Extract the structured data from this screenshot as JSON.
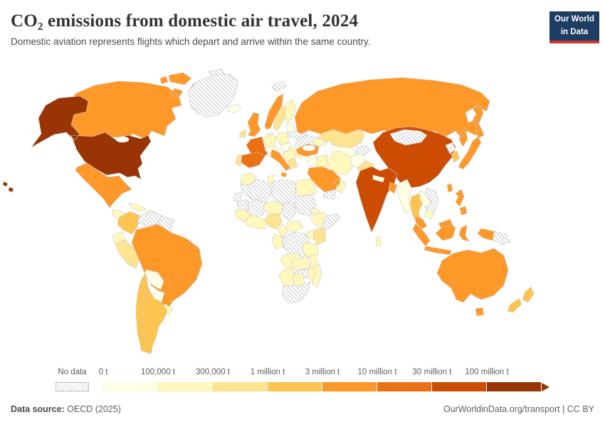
{
  "header": {
    "title": "CO₂ emissions from domestic air travel, 2024",
    "subtitle": "Domestic aviation represents flights which depart and arrive within the same country.",
    "logo": {
      "line1": "Our World",
      "line2": "in Data",
      "bg": "#1d3d63",
      "accent": "#c7392f"
    }
  },
  "footer": {
    "source_label": "Data source:",
    "source": "OECD (2025)",
    "right": "OurWorldinData.org/transport | CC BY"
  },
  "chart_data": {
    "type": "choropleth-map",
    "title": "CO₂ emissions from domestic air travel, 2024",
    "unit": "tonnes CO₂",
    "legend": {
      "position": "bottom",
      "no_data_label": "No data",
      "bucket_labels": [
        "0 t",
        "100,000 t",
        "300,000 t",
        "1 million t",
        "3 million t",
        "10 million t",
        "30 million t",
        "100 million t"
      ],
      "bucket_colors": [
        "#ffffe5",
        "#fff7bc",
        "#fee391",
        "#fec44f",
        "#fe9929",
        "#ec7014",
        "#cc4c02",
        "#993404"
      ]
    },
    "regions": [
      {
        "id": "united-states",
        "name": "United States",
        "bucket": 7
      },
      {
        "id": "canada",
        "name": "Canada",
        "bucket": 4
      },
      {
        "id": "arctic-islands",
        "name": "Arctic islands",
        "bucket": -1
      },
      {
        "id": "greenland",
        "name": "Greenland",
        "bucket": -1
      },
      {
        "id": "mexico",
        "name": "Mexico",
        "bucket": 4
      },
      {
        "id": "central-america",
        "name": "Central America",
        "bucket": 1
      },
      {
        "id": "cuba",
        "name": "Cuba",
        "bucket": 1
      },
      {
        "id": "hispaniola",
        "name": "Hispaniola",
        "bucket": 1
      },
      {
        "id": "colombia",
        "name": "Colombia",
        "bucket": 3
      },
      {
        "id": "venezuela",
        "name": "Venezuela",
        "bucket": -1
      },
      {
        "id": "guyana-suriname",
        "name": "Guyana and Suriname",
        "bucket": -1
      },
      {
        "id": "ecuador",
        "name": "Ecuador",
        "bucket": 1
      },
      {
        "id": "peru",
        "name": "Peru",
        "bucket": 2
      },
      {
        "id": "bolivia",
        "name": "Bolivia",
        "bucket": 0
      },
      {
        "id": "brazil",
        "name": "Brazil",
        "bucket": 4
      },
      {
        "id": "paraguay",
        "name": "Paraguay",
        "bucket": 0
      },
      {
        "id": "uruguay",
        "name": "Uruguay",
        "bucket": 1
      },
      {
        "id": "chile",
        "name": "Chile",
        "bucket": 3
      },
      {
        "id": "argentina",
        "name": "Argentina",
        "bucket": 3
      },
      {
        "id": "iceland",
        "name": "Iceland",
        "bucket": 0
      },
      {
        "id": "united-kingdom",
        "name": "United Kingdom",
        "bucket": 4
      },
      {
        "id": "ireland",
        "name": "Ireland",
        "bucket": 2
      },
      {
        "id": "norway",
        "name": "Norway",
        "bucket": 4
      },
      {
        "id": "svalbard",
        "name": "Svalbard",
        "bucket": -1
      },
      {
        "id": "sweden",
        "name": "Sweden",
        "bucket": 2
      },
      {
        "id": "finland",
        "name": "Finland",
        "bucket": 1
      },
      {
        "id": "denmark",
        "name": "Denmark",
        "bucket": 1
      },
      {
        "id": "baltics",
        "name": "Baltic states",
        "bucket": 0
      },
      {
        "id": "belarus",
        "name": "Belarus",
        "bucket": -1
      },
      {
        "id": "ukraine",
        "name": "Ukraine",
        "bucket": -1
      },
      {
        "id": "poland",
        "name": "Poland",
        "bucket": 1
      },
      {
        "id": "germany",
        "name": "Germany",
        "bucket": 1
      },
      {
        "id": "france",
        "name": "France",
        "bucket": 5
      },
      {
        "id": "spain",
        "name": "Spain",
        "bucket": 5
      },
      {
        "id": "portugal",
        "name": "Portugal",
        "bucket": 2
      },
      {
        "id": "italy",
        "name": "Italy",
        "bucket": 4
      },
      {
        "id": "switzerland-austria",
        "name": "Switzerland and Austria",
        "bucket": 0
      },
      {
        "id": "czechia-hungary",
        "name": "Czechia and Hungary",
        "bucket": 0
      },
      {
        "id": "romania-bulgaria",
        "name": "Romania and Bulgaria",
        "bucket": 1
      },
      {
        "id": "balkans",
        "name": "Balkans",
        "bucket": 1
      },
      {
        "id": "greece",
        "name": "Greece",
        "bucket": 2
      },
      {
        "id": "russia",
        "name": "Russia",
        "bucket": 4
      },
      {
        "id": "kazakhstan",
        "name": "Kazakhstan",
        "bucket": 2
      },
      {
        "id": "central-asia",
        "name": "Central Asia",
        "bucket": 0
      },
      {
        "id": "kyrgyzstan-tajikistan",
        "name": "Kyrgyzstan and Tajikistan",
        "bucket": -1
      },
      {
        "id": "caucasus",
        "name": "Caucasus",
        "bucket": 1
      },
      {
        "id": "turkey",
        "name": "Turkey",
        "bucket": 4
      },
      {
        "id": "syria-jordan",
        "name": "Syria and Jordan",
        "bucket": 0
      },
      {
        "id": "iraq",
        "name": "Iraq",
        "bucket": 1
      },
      {
        "id": "iran",
        "name": "Iran",
        "bucket": 1
      },
      {
        "id": "saudi-arabia",
        "name": "Saudi Arabia",
        "bucket": 4
      },
      {
        "id": "yemen",
        "name": "Yemen",
        "bucket": -1
      },
      {
        "id": "oman",
        "name": "Oman",
        "bucket": 1
      },
      {
        "id": "uae",
        "name": "United Arab Emirates",
        "bucket": 4
      },
      {
        "id": "afghanistan",
        "name": "Afghanistan",
        "bucket": 0
      },
      {
        "id": "pakistan",
        "name": "Pakistan",
        "bucket": 2
      },
      {
        "id": "india",
        "name": "India",
        "bucket": 6
      },
      {
        "id": "nepal",
        "name": "Nepal",
        "bucket": 0
      },
      {
        "id": "bangladesh",
        "name": "Bangladesh",
        "bucket": 4
      },
      {
        "id": "sri-lanka",
        "name": "Sri Lanka",
        "bucket": 1
      },
      {
        "id": "china",
        "name": "China",
        "bucket": 6
      },
      {
        "id": "taiwan",
        "name": "Taiwan",
        "bucket": 4
      },
      {
        "id": "mongolia",
        "name": "Mongolia",
        "bucket": -1
      },
      {
        "id": "north-korea",
        "name": "North Korea",
        "bucket": -1
      },
      {
        "id": "south-korea",
        "name": "South Korea",
        "bucket": 3
      },
      {
        "id": "japan",
        "name": "Japan",
        "bucket": 4
      },
      {
        "id": "myanmar",
        "name": "Myanmar",
        "bucket": 0
      },
      {
        "id": "thailand",
        "name": "Thailand",
        "bucket": 3
      },
      {
        "id": "laos",
        "name": "Laos",
        "bucket": 0
      },
      {
        "id": "vietnam",
        "name": "Vietnam",
        "bucket": -1
      },
      {
        "id": "cambodia",
        "name": "Cambodia",
        "bucket": 1
      },
      {
        "id": "malaysia",
        "name": "Malaysia",
        "bucket": 4
      },
      {
        "id": "indonesia",
        "name": "Indonesia",
        "bucket": 4
      },
      {
        "id": "philippines",
        "name": "Philippines",
        "bucket": 4
      },
      {
        "id": "papua-new-guinea",
        "name": "Papua New Guinea",
        "bucket": -1
      },
      {
        "id": "morocco",
        "name": "Morocco",
        "bucket": 1
      },
      {
        "id": "algeria",
        "name": "Algeria",
        "bucket": -1
      },
      {
        "id": "tunisia",
        "name": "Tunisia",
        "bucket": 1
      },
      {
        "id": "libya",
        "name": "Libya",
        "bucket": -1
      },
      {
        "id": "egypt",
        "name": "Egypt",
        "bucket": 1
      },
      {
        "id": "western-sahara",
        "name": "Western Sahara",
        "bucket": -1
      },
      {
        "id": "mauritania",
        "name": "Mauritania",
        "bucket": -1
      },
      {
        "id": "mali",
        "name": "Mali",
        "bucket": -1
      },
      {
        "id": "niger",
        "name": "Niger",
        "bucket": 1
      },
      {
        "id": "chad",
        "name": "Chad",
        "bucket": -1
      },
      {
        "id": "sudan",
        "name": "Sudan",
        "bucket": -1
      },
      {
        "id": "eritrea",
        "name": "Eritrea",
        "bucket": 1
      },
      {
        "id": "ethiopia",
        "name": "Ethiopia",
        "bucket": 1
      },
      {
        "id": "somalia",
        "name": "Somalia",
        "bucket": -1
      },
      {
        "id": "senegal-guinea",
        "name": "Senegal and Guinea",
        "bucket": 1
      },
      {
        "id": "west-africa-coast",
        "name": "West African coast",
        "bucket": 1
      },
      {
        "id": "nigeria",
        "name": "Nigeria",
        "bucket": 2
      },
      {
        "id": "cameroon",
        "name": "Cameroon",
        "bucket": 1
      },
      {
        "id": "central-african-republic",
        "name": "Central African Republic",
        "bucket": 1
      },
      {
        "id": "dr-congo",
        "name": "Democratic Republic of Congo",
        "bucket": -1
      },
      {
        "id": "congo-gabon",
        "name": "Congo and Gabon",
        "bucket": 1
      },
      {
        "id": "uganda",
        "name": "Uganda",
        "bucket": 1
      },
      {
        "id": "kenya",
        "name": "Kenya",
        "bucket": 2
      },
      {
        "id": "tanzania",
        "name": "Tanzania",
        "bucket": 1
      },
      {
        "id": "angola",
        "name": "Angola",
        "bucket": 1
      },
      {
        "id": "zambia",
        "name": "Zambia",
        "bucket": 1
      },
      {
        "id": "zimbabwe",
        "name": "Zimbabwe",
        "bucket": -1
      },
      {
        "id": "mozambique",
        "name": "Mozambique",
        "bucket": 1
      },
      {
        "id": "namibia",
        "name": "Namibia",
        "bucket": 1
      },
      {
        "id": "botswana",
        "name": "Botswana",
        "bucket": 1
      },
      {
        "id": "south-africa",
        "name": "South Africa",
        "bucket": -1
      },
      {
        "id": "madagascar",
        "name": "Madagascar",
        "bucket": 1
      },
      {
        "id": "australia",
        "name": "Australia",
        "bucket": 4
      },
      {
        "id": "new-zealand",
        "name": "New Zealand",
        "bucket": 3
      }
    ]
  }
}
